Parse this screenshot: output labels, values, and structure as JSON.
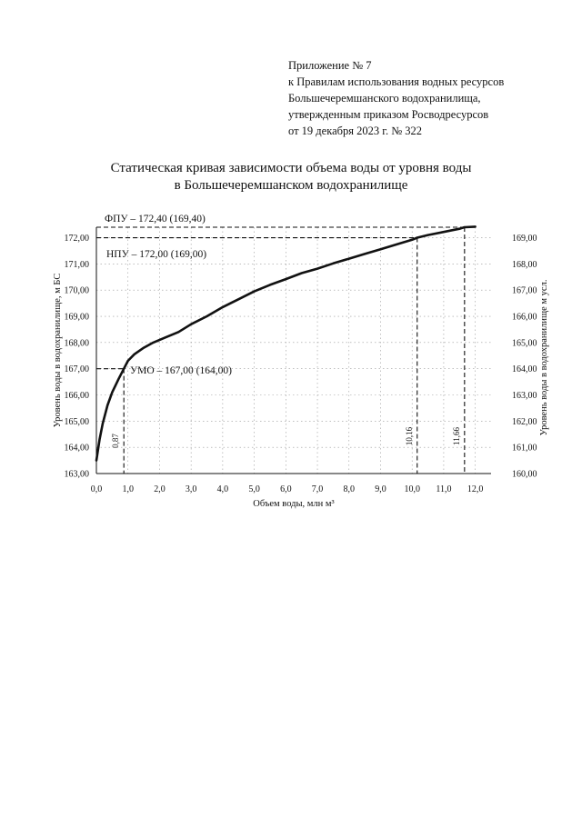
{
  "appendix": {
    "lines": [
      "Приложение № 7",
      "к Правилам использования водных ресурсов",
      "Большечеремшанского водохранилища,",
      "утвержденным приказом Росводресурсов",
      "от 19 декабря 2023 г. № 322"
    ]
  },
  "chart_data": {
    "type": "line",
    "title": "Статическая кривая зависимости объема воды от уровня воды",
    "subtitle": "в Большечеремшанском водохранилище",
    "xlabel": "Объем воды, млн м³",
    "ylabel": "Уровень воды в водохранилище, м БС",
    "ylabel_right": "Уровень воды в водохранилище м усл.",
    "xlim": [
      0,
      12.5
    ],
    "ylim": [
      163,
      172.4
    ],
    "ylim_right": [
      160,
      169.4
    ],
    "grid": true,
    "x_ticks": [
      "0,0",
      "1,0",
      "2,0",
      "3,0",
      "4,0",
      "5,0",
      "6,0",
      "7,0",
      "8,0",
      "9,0",
      "10,0",
      "11,0",
      "12,0"
    ],
    "y_ticks": [
      "163,00",
      "164,00",
      "165,00",
      "166,00",
      "167,00",
      "168,00",
      "169,00",
      "170,00",
      "171,00",
      "172,00"
    ],
    "y_ticks_right": [
      "160,00",
      "161,00",
      "162,00",
      "163,00",
      "164,00",
      "165,00",
      "166,00",
      "167,00",
      "168,00",
      "169,00"
    ],
    "series": [
      {
        "x": [
          0.0,
          0.1,
          0.2,
          0.35,
          0.5,
          0.7,
          0.87,
          1.0,
          1.2,
          1.5,
          1.8,
          2.2,
          2.6,
          3.0,
          3.5,
          4.0,
          4.5,
          5.0,
          5.5,
          6.0,
          6.5,
          7.0,
          7.5,
          8.0,
          8.5,
          9.0,
          9.5,
          10.0,
          10.16,
          10.5,
          11.0,
          11.5,
          11.66,
          12.0
        ],
        "y": [
          163.5,
          164.3,
          164.9,
          165.6,
          166.1,
          166.6,
          167.0,
          167.3,
          167.55,
          167.8,
          168.0,
          168.2,
          168.4,
          168.7,
          169.0,
          169.35,
          169.65,
          169.95,
          170.2,
          170.42,
          170.65,
          170.82,
          171.02,
          171.2,
          171.38,
          171.56,
          171.74,
          171.92,
          172.0,
          172.1,
          172.22,
          172.34,
          172.4,
          172.42
        ]
      }
    ],
    "annotations": [
      {
        "label": "ФПУ – 172,40 (169,40)",
        "level": 172.4,
        "volume": 11.66,
        "volume_label": "11,66"
      },
      {
        "label": "НПУ – 172,00 (169,00)",
        "level": 172.0,
        "volume": 10.16,
        "volume_label": "10,16"
      },
      {
        "label": "УМО – 167,00 (164,00)",
        "level": 167.0,
        "volume": 0.87,
        "volume_label": "0,87"
      }
    ]
  }
}
